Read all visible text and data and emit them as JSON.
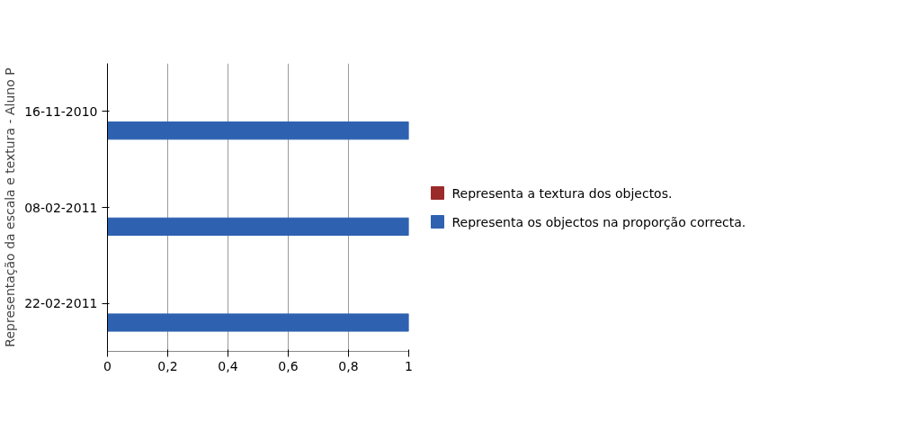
{
  "chart_data": {
    "type": "bar",
    "orientation": "horizontal",
    "ylabel": "Representação da escala e textura - Aluno P",
    "categories": [
      "16-11-2010",
      "08-02-2011",
      "22-02-2011"
    ],
    "series": [
      {
        "name": "Representa a textura dos objectos.",
        "color": "#9b2b2b",
        "values": [
          0,
          0,
          0
        ]
      },
      {
        "name": "Representa os objectos na proporção correcta.",
        "color": "#2e62b0",
        "values": [
          1,
          1,
          1
        ]
      }
    ],
    "xlim": [
      0,
      1
    ],
    "xticks": [
      0,
      {
        "value": 0.2,
        "label": "0,2"
      },
      {
        "value": 0.4,
        "label": "0,4"
      },
      {
        "value": 0.6,
        "label": "0,6"
      },
      {
        "value": 0.8,
        "label": "0,8"
      },
      1
    ],
    "grid": "x",
    "legend": "right"
  }
}
